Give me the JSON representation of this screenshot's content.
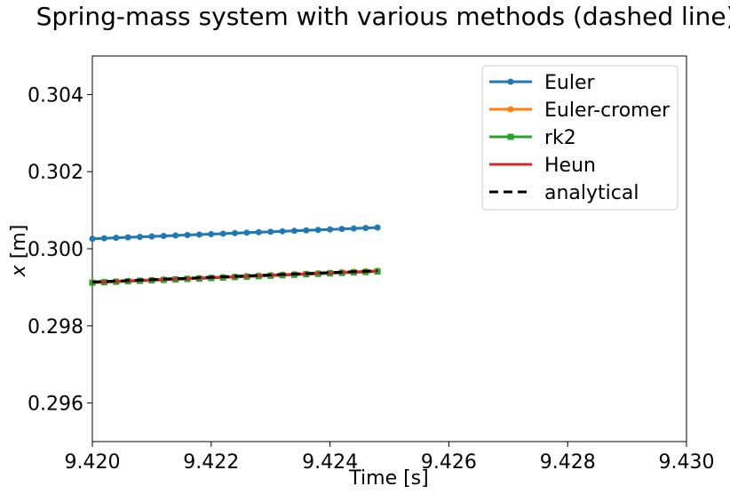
{
  "chart_data": {
    "type": "line",
    "title": "Spring-mass system with various methods (dashed line).",
    "xlabel": "Time [s]",
    "ylabel_var": "x",
    "ylabel_unit": " [m]",
    "xlim": [
      9.42,
      9.43
    ],
    "ylim": [
      0.295,
      0.305
    ],
    "xticks": [
      9.42,
      9.422,
      9.424,
      9.426,
      9.428,
      9.43
    ],
    "xtick_labels": [
      "9.420",
      "9.422",
      "9.424",
      "9.426",
      "9.428",
      "9.430"
    ],
    "yticks": [
      0.296,
      0.298,
      0.3,
      0.302,
      0.304
    ],
    "ytick_labels": [
      "0.296",
      "0.298",
      "0.300",
      "0.302",
      "0.304"
    ],
    "grid": false,
    "legend_position": "top-right",
    "x_start": 9.42,
    "x_end": 9.4248,
    "n_points": 25,
    "series": [
      {
        "name": "Euler",
        "color": "#1f77b4",
        "marker": "circle",
        "linestyle": "solid",
        "y_start": 0.30026,
        "y_end": 0.30055
      },
      {
        "name": "Euler-cromer",
        "color": "#ff7f0e",
        "marker": "circle",
        "linestyle": "solid",
        "y_start": 0.29913,
        "y_end": 0.29943
      },
      {
        "name": "rk2",
        "color": "#2ca02c",
        "marker": "square",
        "linestyle": "solid",
        "y_start": 0.29912,
        "y_end": 0.29941
      },
      {
        "name": "Heun",
        "color": "#d62728",
        "marker": "none",
        "linestyle": "solid",
        "y_start": 0.29913,
        "y_end": 0.29942
      },
      {
        "name": "analytical",
        "color": "#000000",
        "marker": "none",
        "linestyle": "dashed",
        "y_start": 0.29914,
        "y_end": 0.29943
      }
    ]
  }
}
